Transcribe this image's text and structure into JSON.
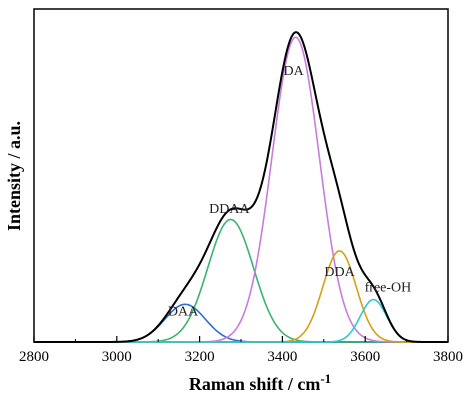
{
  "chart_data": {
    "type": "line",
    "xlabel": "Raman shift / cm",
    "xlabel_superscript": "-1",
    "ylabel": "Intensity / a.u.",
    "xlim": [
      2800,
      3800
    ],
    "ylim": [
      0,
      1.06
    ],
    "x_ticks": [
      "2800",
      "3000",
      "3200",
      "3400",
      "3600",
      "3800"
    ],
    "y_ticks_labeled": false,
    "grid": false,
    "legend": "none",
    "series": [
      {
        "key": "envelope",
        "color": "#000000",
        "center": null,
        "amplitude": null,
        "fwhm": null
      },
      {
        "name": "DAA",
        "color": "#2f6fce",
        "center": 3165,
        "amplitude": 0.12,
        "fwhm": 115,
        "label_x": 3160,
        "label_y": 0.085
      },
      {
        "name": "DDAA",
        "color": "#3cb371",
        "center": 3275,
        "amplitude": 0.39,
        "fwhm": 130,
        "label_x": 3272,
        "label_y": 0.41
      },
      {
        "name": "DA",
        "color": "#c77dde",
        "center": 3432,
        "amplitude": 0.97,
        "fwhm": 135,
        "label_x": 3427,
        "label_y": 0.85
      },
      {
        "name": "DDA",
        "color": "#d4a017",
        "center": 3538,
        "amplitude": 0.29,
        "fwhm": 95,
        "label_x": 3538,
        "label_y": 0.21
      },
      {
        "name": "free-OH",
        "color": "#2ec8d8",
        "center": 3620,
        "amplitude": 0.135,
        "fwhm": 75,
        "label_x": 3655,
        "label_y": 0.16
      }
    ]
  }
}
